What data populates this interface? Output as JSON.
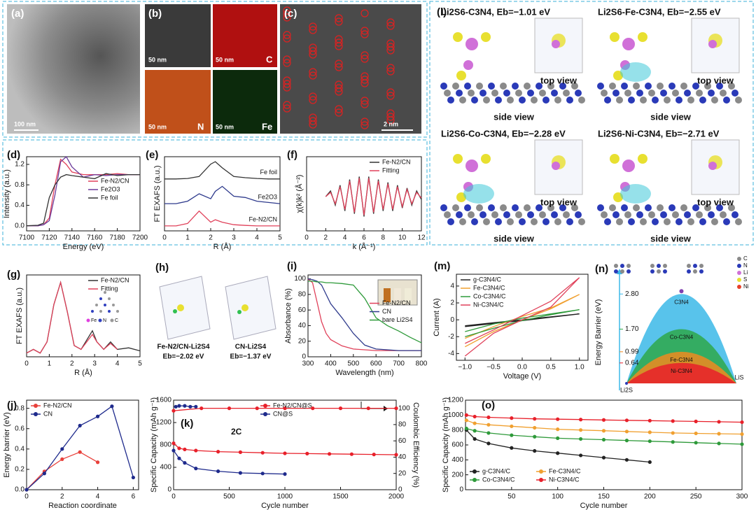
{
  "panels": {
    "a": {
      "label": "(a)",
      "scale": "100 nm"
    },
    "b": {
      "label": "(b)",
      "tiles": [
        {
          "scale": "50 nm"
        },
        {
          "scale": "50 nm",
          "element": "C"
        },
        {
          "scale": "50 nm",
          "element": "N"
        },
        {
          "scale": "50 nm",
          "element": "Fe"
        }
      ]
    },
    "c": {
      "label": "(c)",
      "scale": "2 nm"
    },
    "h": {
      "label": "(h)",
      "structures": [
        {
          "name": "Fe-N2/CN-Li2S4",
          "energy": "Eb=−2.02 eV"
        },
        {
          "name": "CN-Li2S4",
          "energy": "Eb=−1.37 eV"
        }
      ]
    },
    "l": {
      "label": "(l)",
      "views": [
        {
          "title": "Li2S6-C3N4, Eb=−1.01 eV",
          "top": "top view",
          "side": "side view"
        },
        {
          "title": "Li2S6-Fe-C3N4, Eb=−2.55 eV",
          "top": "top view",
          "side": "side view"
        },
        {
          "title": "Li2S6-Co-C3N4, Eb=−2.28 eV",
          "top": "top view",
          "side": "side view"
        },
        {
          "title": "Li2S6-Ni-C3N4, Eb=−2.71 eV",
          "top": "top view",
          "side": "side view"
        }
      ]
    }
  },
  "chart_data": [
    {
      "type": "line",
      "label": "(d)",
      "x_label": "Energy (eV)",
      "y_label": "Intensity (a.u.)",
      "style": "lines",
      "legend": "center right",
      "xlim": [
        7100,
        7200
      ],
      "xticks": [
        7100,
        7120,
        7140,
        7160,
        7180,
        7200
      ],
      "ylim": [
        -0.1,
        1.35
      ],
      "yticks": [
        {
          "value": 0,
          "label": "0.0"
        },
        0.4,
        0.8,
        1.2
      ],
      "x": [
        7100,
        7110,
        7115,
        7120,
        7125,
        7130,
        7135,
        7140,
        7150,
        7160,
        7170,
        7180,
        7190,
        7200
      ],
      "series": [
        {
          "name": "Fe-N2/CN",
          "color": "#e0415a",
          "values": [
            0,
            0,
            0.02,
            0.15,
            0.8,
            1.3,
            1.2,
            1.05,
            1.0,
            1.0,
            1.0,
            1.02,
            1.0,
            1.0
          ]
        },
        {
          "name": "Fe2O3",
          "color": "#6a3a9a",
          "values": [
            0,
            0,
            0.02,
            0.1,
            0.6,
            1.25,
            1.35,
            1.15,
            0.95,
            1.0,
            0.98,
            1.0,
            1.0,
            1.0
          ]
        },
        {
          "name": "Fe foil",
          "color": "#333333",
          "values": [
            0,
            0.01,
            0.05,
            0.55,
            0.8,
            0.95,
            1.0,
            0.98,
            0.95,
            0.92,
            1.02,
            0.98,
            1.0,
            1.0
          ]
        }
      ]
    },
    {
      "type": "line",
      "label": "(e)",
      "x_label": "R (Å)",
      "y_label": "FT EXAFS (a.u.)",
      "style": "lines",
      "legend": "inline",
      "xlim": [
        0,
        5
      ],
      "xticks": [
        0,
        1,
        2,
        3,
        4,
        5
      ],
      "ylim": [
        0,
        3
      ],
      "x": [
        0,
        0.5,
        1,
        1.5,
        2,
        2.2,
        2.5,
        3,
        3.5,
        4,
        4.5,
        5
      ],
      "series": [
        {
          "name": "Fe foil",
          "color": "#333333",
          "values": [
            2.1,
            2.1,
            2.12,
            2.2,
            2.7,
            2.8,
            2.55,
            2.2,
            2.15,
            2.12,
            2.1,
            2.1
          ]
        },
        {
          "name": "Fe2O3",
          "color": "#2e3a8c",
          "values": [
            1.1,
            1.1,
            1.2,
            1.5,
            1.3,
            1.6,
            1.8,
            1.4,
            1.35,
            1.2,
            1.15,
            1.1
          ]
        },
        {
          "name": "Fe-N2/CN",
          "color": "#e0415a",
          "values": [
            0.2,
            0.2,
            0.3,
            0.8,
            0.35,
            0.45,
            0.35,
            0.25,
            0.22,
            0.2,
            0.2,
            0.2
          ]
        }
      ]
    },
    {
      "type": "line",
      "label": "(f)",
      "x_label": "k (Å⁻¹)",
      "y_label": "χ(k)k² (Å⁻²)",
      "style": "lines",
      "legend": "upper right",
      "xlim": [
        0,
        12
      ],
      "xticks": [
        0,
        2,
        4,
        6,
        8,
        10,
        12
      ],
      "ylim": [
        -1.2,
        1.4
      ],
      "x": [
        2,
        2.5,
        3,
        3.5,
        4,
        4.5,
        5,
        5.5,
        6,
        6.5,
        7,
        7.5,
        8,
        8.5,
        9,
        9.5,
        10,
        10.5,
        11,
        11.5,
        12
      ],
      "series": [
        {
          "name": "Fe-N2/CN",
          "color": "#333333",
          "values": [
            0,
            0.2,
            -0.3,
            0.4,
            -0.5,
            0.6,
            -0.6,
            0.7,
            -0.7,
            0.7,
            -0.6,
            0.6,
            -0.5,
            0.5,
            -0.5,
            0.4,
            -0.4,
            0.3,
            -0.3,
            0.2,
            -0.1
          ]
        },
        {
          "name": "Fitting",
          "color": "#e0415a",
          "values": [
            0,
            0.15,
            -0.25,
            0.35,
            -0.45,
            0.55,
            -0.55,
            0.65,
            -0.65,
            0.65,
            -0.55,
            0.55,
            -0.45,
            0.45,
            -0.45,
            0.35,
            -0.35,
            0.25,
            -0.25,
            0.15,
            -0.05
          ]
        }
      ]
    },
    {
      "type": "line",
      "label": "(g)",
      "x_label": "R (Å)",
      "y_label": "FT EXAFS (a.u.)",
      "style": "lines",
      "legend": "upper right",
      "xlim": [
        0,
        5
      ],
      "xticks": [
        0,
        1,
        2,
        3,
        4,
        5
      ],
      "ylim": [
        0,
        1.1
      ],
      "x": [
        0,
        0.3,
        0.6,
        0.9,
        1.2,
        1.5,
        1.8,
        2.1,
        2.4,
        2.7,
        2.9,
        3.1,
        3.4,
        3.7,
        4,
        4.5,
        5
      ],
      "inset_legend": [
        {
          "name": "Fe",
          "color": "#e040e0"
        },
        {
          "name": "N",
          "color": "#3040c0"
        },
        {
          "name": "C",
          "color": "#999999"
        }
      ],
      "series": [
        {
          "name": "Fe-N2/CN",
          "color": "#333333",
          "values": [
            0.05,
            0.1,
            0.05,
            0.2,
            0.7,
            1,
            0.6,
            0.15,
            0.1,
            0.25,
            0.35,
            0.2,
            0.1,
            0.2,
            0.1,
            0.12,
            0.08
          ]
        },
        {
          "name": "Fitting",
          "color": "#e0415a",
          "values": [
            0.05,
            0.1,
            0.05,
            0.2,
            0.7,
            1,
            0.6,
            0.15,
            0.1,
            0.22,
            0.3,
            0.2,
            0.1,
            0.18,
            0.1,
            null,
            null
          ]
        }
      ]
    },
    {
      "type": "line",
      "label": "(i)",
      "x_label": "Wavelength (nm)",
      "y_label": "Absorbance (%)",
      "style": "lines",
      "legend": "center right",
      "xlim": [
        300,
        800
      ],
      "xticks": [
        300,
        400,
        500,
        600,
        700,
        800
      ],
      "ylim": [
        0,
        105
      ],
      "yticks": [
        0,
        20,
        40,
        60,
        80,
        100
      ],
      "x": [
        300,
        320,
        340,
        360,
        380,
        400,
        450,
        500,
        550,
        600,
        650,
        700,
        750,
        800
      ],
      "series": [
        {
          "name": "Fe-N2/CN",
          "color": "#e0415a",
          "values": [
            100,
            95,
            70,
            45,
            30,
            22,
            14,
            10,
            9,
            8,
            8,
            8,
            8,
            8
          ]
        },
        {
          "name": "CN",
          "color": "#2e3a8c",
          "values": [
            100,
            99,
            97,
            92,
            80,
            68,
            50,
            30,
            15,
            10,
            9,
            8,
            8,
            8
          ]
        },
        {
          "name": "bare Li2S4",
          "color": "#2e9a3a",
          "values": [
            97,
            97,
            96,
            96,
            95,
            95,
            94,
            92,
            75,
            50,
            40,
            33,
            25,
            18
          ]
        }
      ]
    },
    {
      "type": "line",
      "label": "(m)",
      "x_label": "Voltage (V)",
      "y_label": "Current (A)",
      "style": "lines",
      "legend": "upper left",
      "xlim": [
        -1.15,
        1.15
      ],
      "xticks": [
        {
          "value": -1,
          "label": "−1.0"
        },
        {
          "value": -0.5,
          "label": "−0.5"
        },
        {
          "value": 0,
          "label": "0.0"
        },
        0.5,
        {
          "value": 1,
          "label": "1.0"
        }
      ],
      "ylim": [
        -4.8,
        5.4
      ],
      "yticks": [
        -4,
        -2,
        0,
        2,
        4
      ],
      "x": [
        -1,
        -0.5,
        0,
        0.5,
        1,
        0.5,
        0,
        -0.5,
        -1
      ],
      "series": [
        {
          "name": "g-C3N4/C",
          "color": "#222222",
          "values": [
            -0.8,
            -0.45,
            -0.1,
            0.3,
            0.7,
            0.35,
            0,
            -0.35,
            -0.7
          ]
        },
        {
          "name": "Fe-C3N4/C",
          "color": "#f0a030",
          "values": [
            -3.2,
            -1.4,
            0,
            1.3,
            3,
            1.4,
            0.4,
            -0.8,
            -2.2
          ]
        },
        {
          "name": "Co-C3N4/C",
          "color": "#2e9a3a",
          "values": [
            -2,
            -1,
            -0.1,
            0.6,
            1.2,
            0.7,
            0.2,
            -0.5,
            -1.4
          ]
        },
        {
          "name": "Ni-C3N4/C",
          "color": "#e0415a",
          "values": [
            -4.3,
            -1.6,
            0,
            1.5,
            5,
            2.2,
            0.5,
            -1.2,
            -2.8
          ]
        }
      ]
    },
    {
      "type": "barrier",
      "label": "(n)",
      "y_label": "Energy Barrier (eV)",
      "ylim": [
        0,
        3.2
      ],
      "categories": [
        "C3N4",
        "Co-C3N4",
        "Fe-C3N4",
        "Ni-C3N4"
      ],
      "values": [
        2.8,
        1.7,
        0.99,
        0.64
      ],
      "value_labels": [
        "2.80",
        "1.70",
        "0.99",
        "0.64"
      ],
      "colors": [
        "#3bb8e8",
        "#2ea84a",
        "#f08a20",
        "#e8202a"
      ],
      "endpoints": [
        "Li2S",
        "LiS"
      ],
      "atom_legend": [
        {
          "name": "C",
          "color": "#8a8a8a"
        },
        {
          "name": "N",
          "color": "#2a3ab8"
        },
        {
          "name": "Li",
          "color": "#d070d8"
        },
        {
          "name": "S",
          "color": "#e8e030"
        },
        {
          "name": "Ni",
          "color": "#e8402a"
        }
      ]
    },
    {
      "type": "line",
      "label": "(j)",
      "x_label": "Reaction coordinate",
      "y_label": "Energy barrier (eV)",
      "style": "lines+markers",
      "legend": "upper left",
      "xlim": [
        0,
        6.3
      ],
      "xticks": [
        0,
        2,
        4,
        6
      ],
      "ylim": [
        0,
        0.88
      ],
      "yticks": [
        {
          "value": 0,
          "label": "0.0"
        },
        0.2,
        0.4,
        0.6,
        0.8
      ],
      "series": [
        {
          "name": "Fe-N2/CN",
          "color": "#e8403a",
          "x": [
            0,
            1,
            2,
            3,
            4
          ],
          "values": [
            0,
            0.18,
            0.3,
            0.37,
            0.27
          ]
        },
        {
          "name": "CN",
          "color": "#1e2a8c",
          "x": [
            0,
            1,
            2,
            3,
            4,
            4.8,
            6
          ],
          "values": [
            0,
            0.16,
            0.4,
            0.63,
            0.72,
            0.82,
            0.12
          ]
        }
      ]
    },
    {
      "type": "line",
      "label": "(k)",
      "x_label": "Cycle number",
      "y_label": "Specific Capacity (mAh g⁻¹)",
      "y2_label": "Coulombic Efficiency (%)",
      "style": "lines+markers",
      "legend": "upper center",
      "annotations": [
        "2C"
      ],
      "xlim": [
        0,
        2000
      ],
      "xticks": [
        0,
        500,
        1000,
        1500,
        2000
      ],
      "ylim": [
        0,
        1600
      ],
      "yticks": [
        0,
        400,
        800,
        1200,
        1600
      ],
      "y2lim": [
        0,
        110
      ],
      "y2ticks": [
        0,
        20,
        40,
        60,
        80,
        100
      ],
      "series": [
        {
          "name": "Fe-N2/CN@S",
          "color": "#e8202a",
          "x": [
            0,
            50,
            100,
            200,
            400,
            600,
            800,
            1000,
            1200,
            1400,
            1600,
            1800,
            2000
          ],
          "values": [
            830,
            740,
            720,
            700,
            680,
            670,
            660,
            650,
            645,
            640,
            635,
            630,
            625
          ]
        },
        {
          "name": "CN@S",
          "color": "#1e2a8c",
          "x": [
            0,
            50,
            100,
            200,
            400,
            600,
            800,
            1000
          ],
          "values": [
            700,
            560,
            480,
            380,
            330,
            300,
            290,
            280
          ]
        },
        {
          "color": "#e8202a",
          "axis": "y2",
          "x": [
            0,
            250,
            500,
            750,
            1000,
            1250,
            1500,
            1750,
            2000
          ],
          "values": [
            97,
            100,
            100,
            100,
            100,
            100,
            100,
            100,
            100
          ]
        },
        {
          "color": "#1e2a8c",
          "axis": "y2",
          "x": [
            20,
            50,
            100,
            150,
            200
          ],
          "values": [
            102,
            103,
            103,
            102,
            102
          ]
        }
      ]
    },
    {
      "type": "line",
      "label": "(o)",
      "x_label": "Cycle number",
      "y_label": "Specific Capacity (mAh g⁻¹)",
      "style": "lines+markers",
      "legend": "lower left",
      "legend_columns": 2,
      "xlim": [
        0,
        300
      ],
      "xticks": [
        50,
        100,
        150,
        200,
        250,
        300
      ],
      "ylim": [
        0,
        1200
      ],
      "yticks": [
        0,
        200,
        400,
        600,
        800,
        1000,
        1200
      ],
      "x": [
        1,
        10,
        25,
        50,
        75,
        100,
        125,
        150,
        175,
        200,
        225,
        250,
        275,
        300
      ],
      "series": [
        {
          "name": "g-C3N4/C",
          "color": "#222222",
          "x": [
            1,
            10,
            25,
            50,
            75,
            100,
            125,
            150,
            175,
            200
          ],
          "values": [
            800,
            680,
            620,
            560,
            520,
            490,
            460,
            430,
            400,
            370
          ]
        },
        {
          "name": "Fe-C3N4/C",
          "color": "#f0a030",
          "values": [
            930,
            890,
            870,
            850,
            830,
            810,
            800,
            790,
            780,
            770,
            760,
            755,
            750,
            745
          ]
        },
        {
          "name": "Co-C3N4/C",
          "color": "#2e9a3a",
          "values": [
            820,
            790,
            760,
            730,
            710,
            690,
            680,
            670,
            660,
            650,
            640,
            630,
            620,
            610
          ]
        },
        {
          "name": "Ni-C3N4/C",
          "color": "#e8202a",
          "values": [
            1000,
            980,
            970,
            960,
            950,
            945,
            940,
            935,
            930,
            925,
            920,
            915,
            910,
            905
          ]
        }
      ]
    }
  ]
}
